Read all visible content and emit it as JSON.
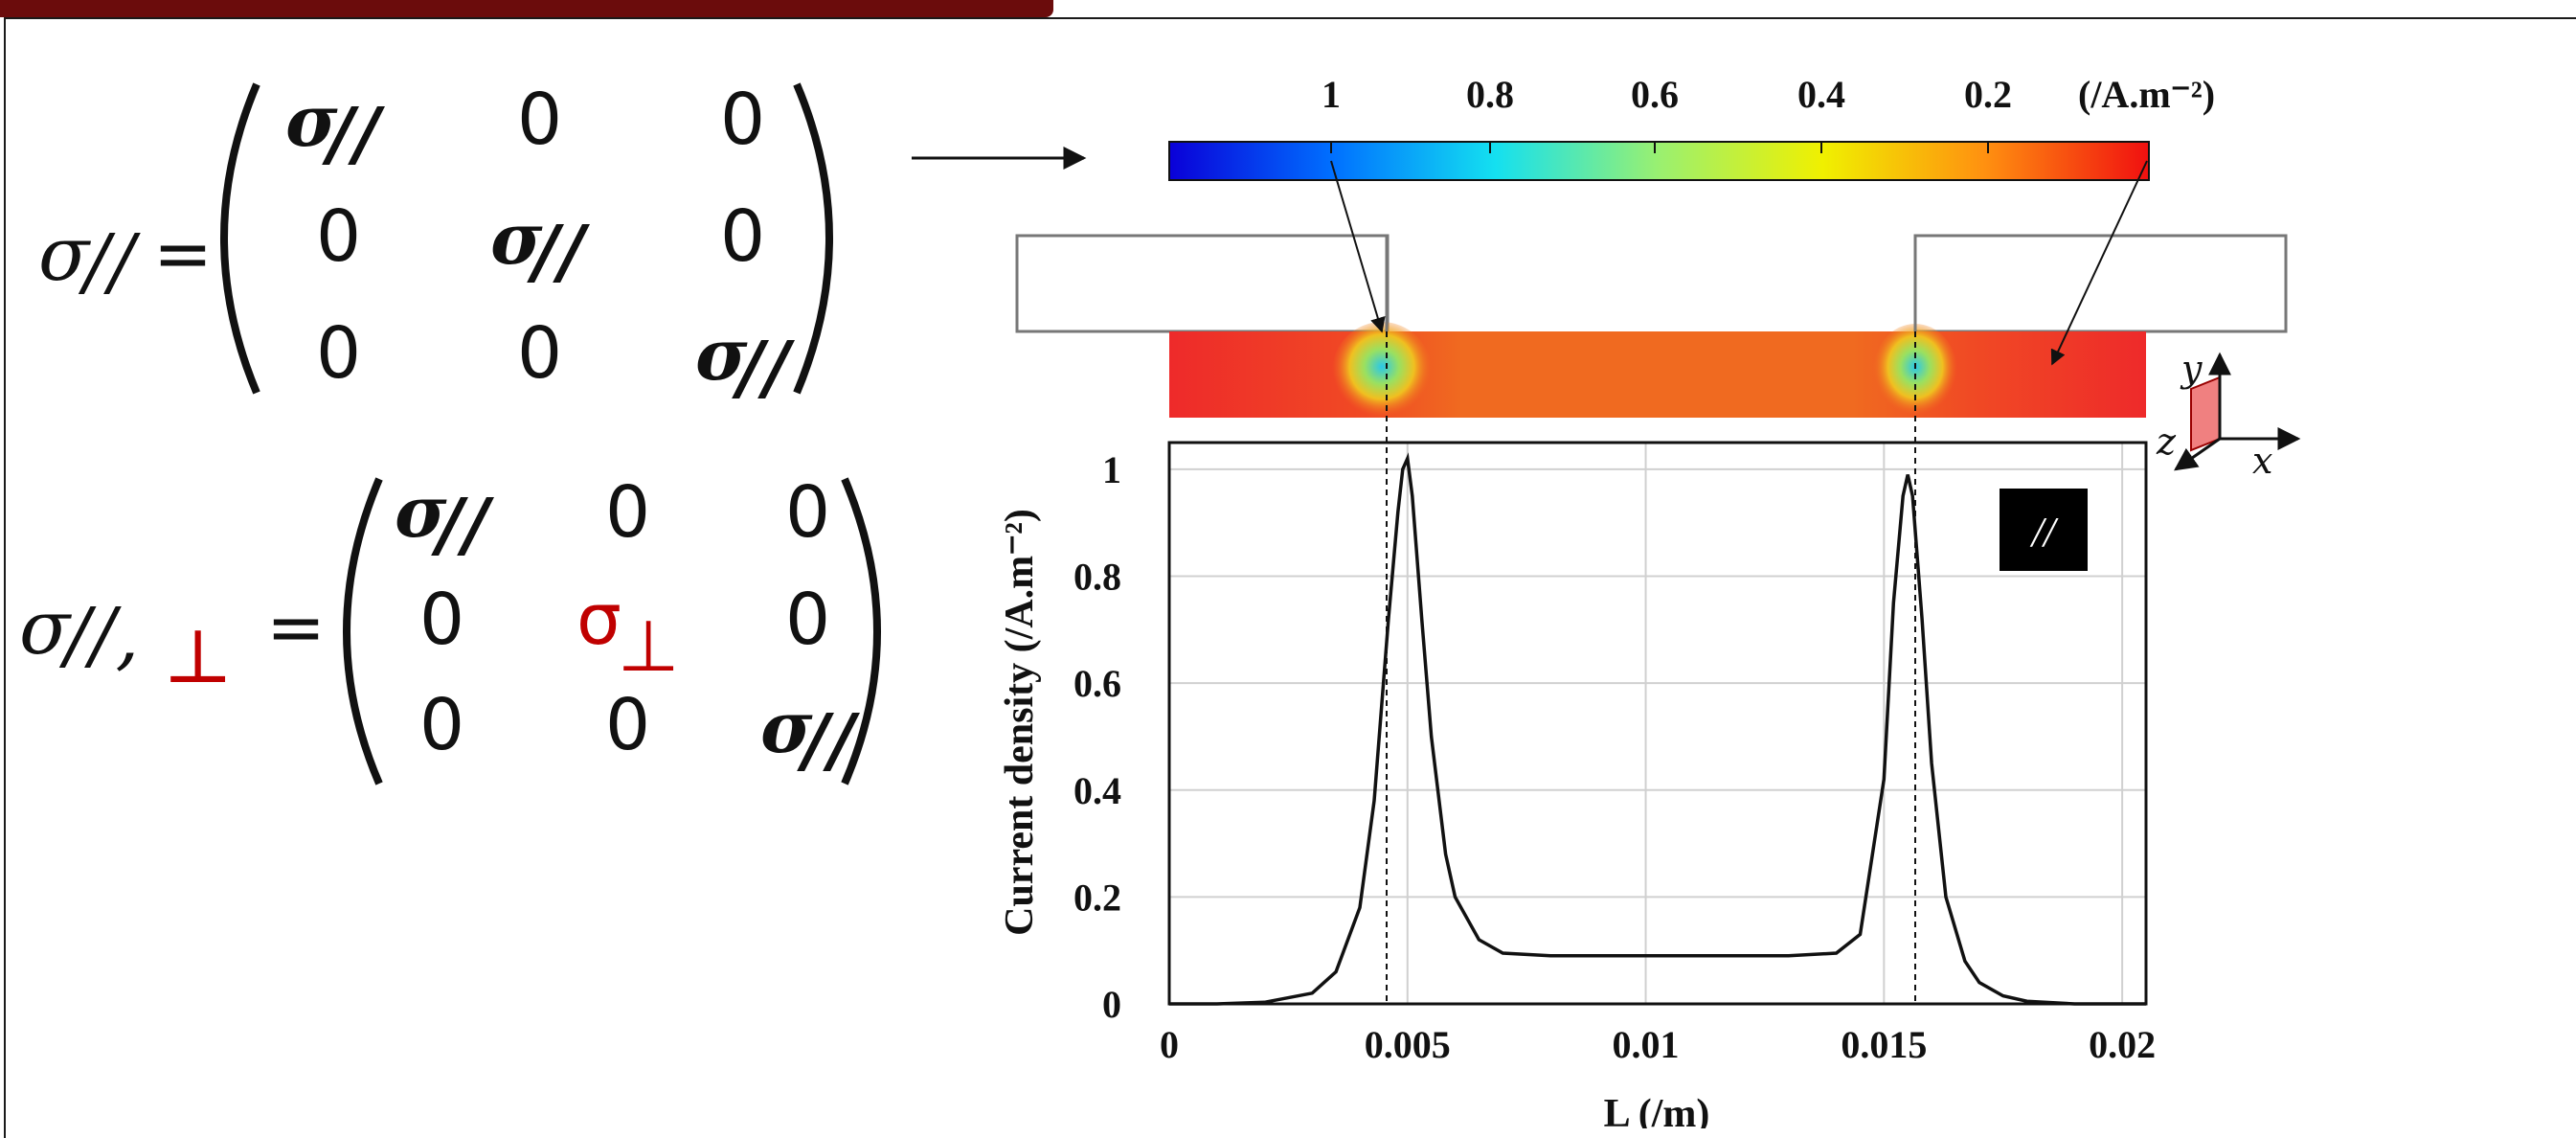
{
  "equations": {
    "eq1_lhs": "σ",
    "eq1_lhs_sub": "//",
    "eq2_lhs": "σ",
    "eq2_lhs_sub": "//,",
    "eq2_lhs_red": "⊥",
    "equals": "=",
    "bold_sigma": "σ",
    "bold_sub": "//",
    "zero": "0",
    "red_sigma": "σ",
    "red_sub": "⊥"
  },
  "colorbar": {
    "ticks": [
      "1",
      "0.8",
      "0.6",
      "0.4",
      "0.2"
    ],
    "unit": "(/A.m⁻²)",
    "colors": [
      "#0a00d8",
      "#0070ff",
      "#14e0f0",
      "#9af070",
      "#f0f000",
      "#ff9010",
      "#f01010"
    ]
  },
  "mode_badge": "//",
  "axes_indicator": {
    "y": "y",
    "z": "z",
    "x": "x"
  },
  "field_colors": {
    "background": "#f06a20",
    "edge": "#ee2a2a",
    "hotspot": "#3ad0e0"
  },
  "chart_data": {
    "type": "line",
    "xlabel": "L (/m)",
    "ylabel": "Current density (/A.m⁻²)",
    "xlim": [
      0,
      0.0205
    ],
    "ylim": [
      0,
      1.05
    ],
    "xticks": [
      "0",
      "0.005",
      "0.01",
      "0.015",
      "0.02"
    ],
    "yticks": [
      "0",
      "0.2",
      "0.4",
      "0.6",
      "0.8",
      "1"
    ],
    "grid": true,
    "series": [
      {
        "color": "#111111",
        "x": [
          0,
          0.001,
          0.002,
          0.003,
          0.0035,
          0.004,
          0.0043,
          0.0046,
          0.0048,
          0.0049,
          0.005,
          0.0051,
          0.0053,
          0.0055,
          0.0058,
          0.006,
          0.0065,
          0.007,
          0.008,
          0.009,
          0.01,
          0.011,
          0.012,
          0.013,
          0.014,
          0.0145,
          0.015,
          0.0152,
          0.0154,
          0.0155,
          0.0156,
          0.0158,
          0.016,
          0.0163,
          0.0167,
          0.017,
          0.0175,
          0.018,
          0.019,
          0.0205
        ],
        "y": [
          0.0,
          0.0,
          0.003,
          0.02,
          0.06,
          0.18,
          0.38,
          0.72,
          0.92,
          1.0,
          1.02,
          0.95,
          0.72,
          0.5,
          0.28,
          0.2,
          0.12,
          0.095,
          0.09,
          0.09,
          0.09,
          0.09,
          0.09,
          0.09,
          0.095,
          0.13,
          0.42,
          0.75,
          0.95,
          0.99,
          0.95,
          0.72,
          0.45,
          0.2,
          0.08,
          0.04,
          0.015,
          0.005,
          0.0,
          0.0
        ]
      }
    ]
  }
}
